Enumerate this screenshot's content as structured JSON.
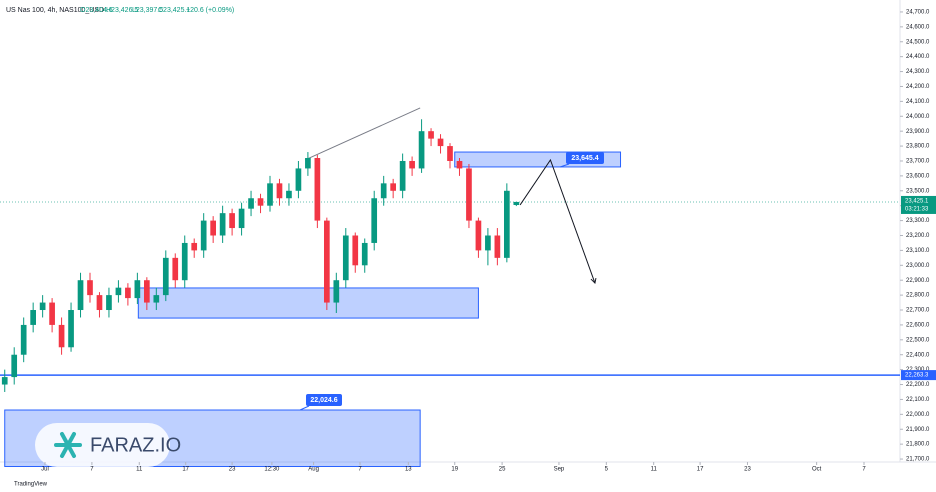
{
  "chart_data": {
    "type": "candlestick",
    "header": {
      "symbol": "US Nas 100, 4h, NAS100_USD",
      "open": "O23,404.6",
      "high": "H23,426.5",
      "low": "L23,397.5",
      "close": "C23,425.1",
      "change": "+20.6 (+0.09%)"
    },
    "up_color": "#089981",
    "down_color": "#f23645",
    "open": [
      22200,
      22250,
      22400,
      22600,
      22700,
      22750,
      22600,
      22450,
      22700,
      22900,
      22800,
      22700,
      22800,
      22850,
      22780,
      22900,
      22750,
      22800,
      23050,
      22900,
      23150,
      23100,
      23300,
      23200,
      23350,
      23250,
      23380,
      23450,
      23400,
      23550,
      23450,
      23500,
      23650,
      23720,
      23300,
      22750,
      22900,
      23200,
      23000,
      23150,
      23450,
      23550,
      23500,
      23700,
      23650,
      23900,
      23850,
      23800,
      23700,
      23650,
      23300,
      23100,
      23200,
      23050,
      23404.6
    ],
    "high": [
      22300,
      22450,
      22650,
      22750,
      22800,
      22780,
      22650,
      22750,
      22950,
      22950,
      22820,
      22850,
      22900,
      22880,
      22950,
      22920,
      22850,
      23100,
      23080,
      23200,
      23180,
      23350,
      23330,
      23400,
      23380,
      23420,
      23500,
      23480,
      23600,
      23580,
      23550,
      23700,
      23760,
      23740,
      23320,
      22950,
      23250,
      23220,
      23180,
      23500,
      23600,
      23580,
      23750,
      23730,
      23980,
      23920,
      23880,
      23820,
      23720,
      23680,
      23320,
      23250,
      23250,
      23550,
      23426.5
    ],
    "low": [
      22150,
      22200,
      22350,
      22550,
      22650,
      22550,
      22400,
      22420,
      22650,
      22750,
      22650,
      22650,
      22750,
      22730,
      22740,
      22700,
      22700,
      22760,
      22850,
      22850,
      23050,
      23050,
      23150,
      23150,
      23200,
      23200,
      23330,
      23350,
      23360,
      23400,
      23400,
      23450,
      23600,
      23250,
      22700,
      22680,
      22850,
      22950,
      22950,
      23100,
      23400,
      23450,
      23450,
      23600,
      23620,
      23800,
      23750,
      23650,
      23600,
      23250,
      23050,
      23000,
      23000,
      23020,
      23397.5
    ],
    "close": [
      22250,
      22400,
      22600,
      22700,
      22750,
      22600,
      22450,
      22700,
      22900,
      22800,
      22700,
      22800,
      22850,
      22780,
      22900,
      22750,
      22800,
      23050,
      22900,
      23150,
      23100,
      23300,
      23200,
      23350,
      23250,
      23380,
      23450,
      23400,
      23550,
      23450,
      23500,
      23650,
      23720,
      23300,
      22750,
      22900,
      23200,
      23000,
      23150,
      23450,
      23550,
      23500,
      23700,
      23650,
      23900,
      23850,
      23800,
      23700,
      23650,
      23300,
      23100,
      23200,
      23050,
      23500,
      23425.1
    ],
    "xlim": [
      0,
      95
    ],
    "xticks": [
      {
        "value": 4.75,
        "label": "Jul"
      },
      {
        "value": 9.7,
        "label": "7"
      },
      {
        "value": 14.7,
        "label": "11"
      },
      {
        "value": 19.6,
        "label": "17"
      },
      {
        "value": 24.5,
        "label": "23"
      },
      {
        "value": 28.7,
        "label": "12:30"
      },
      {
        "value": 33.1,
        "label": "Aug"
      },
      {
        "value": 38.0,
        "label": "7"
      },
      {
        "value": 43.1,
        "label": "13"
      },
      {
        "value": 48.0,
        "label": "19"
      },
      {
        "value": 53.0,
        "label": "25"
      },
      {
        "value": 59.0,
        "label": "Sep"
      },
      {
        "value": 64.0,
        "label": "5"
      },
      {
        "value": 69.0,
        "label": "11"
      },
      {
        "value": 73.9,
        "label": "17"
      },
      {
        "value": 78.9,
        "label": "23"
      },
      {
        "value": 86.2,
        "label": "Oct"
      },
      {
        "value": 91.2,
        "label": "7"
      }
    ],
    "ylim": [
      21650,
      24750
    ],
    "yticks": [
      {
        "value": 24700,
        "label": "24,700.0"
      },
      {
        "value": 24600,
        "label": "24,600.0"
      },
      {
        "value": 24500,
        "label": "24,500.0"
      },
      {
        "value": 24400,
        "label": "24,400.0"
      },
      {
        "value": 24300,
        "label": "24,300.0"
      },
      {
        "value": 24200,
        "label": "24,200.0"
      },
      {
        "value": 24100,
        "label": "24,100.0"
      },
      {
        "value": 24000,
        "label": "24,000.0"
      },
      {
        "value": 23900,
        "label": "23,900.0"
      },
      {
        "value": 23800,
        "label": "23,800.0"
      },
      {
        "value": 23700,
        "label": "23,700.0"
      },
      {
        "value": 23600,
        "label": "23,600.0"
      },
      {
        "value": 23500,
        "label": "23,500.0"
      },
      {
        "value": 23400,
        "label": "23,400.0"
      },
      {
        "value": 23300,
        "label": "23,300.0"
      },
      {
        "value": 23200,
        "label": "23,200.0"
      },
      {
        "value": 23100,
        "label": "23,100.0"
      },
      {
        "value": 23000,
        "label": "23,000.0"
      },
      {
        "value": 22900,
        "label": "22,900.0"
      },
      {
        "value": 22800,
        "label": "22,800.0"
      },
      {
        "value": 22700,
        "label": "22,700.0"
      },
      {
        "value": 22600,
        "label": "22,600.0"
      },
      {
        "value": 22500,
        "label": "22,500.0"
      },
      {
        "value": 22400,
        "label": "22,400.0"
      },
      {
        "value": 22300,
        "label": "22,300.0"
      },
      {
        "value": 22200,
        "label": "22,200.0"
      },
      {
        "value": 22100,
        "label": "22,100.0"
      },
      {
        "value": 22000,
        "label": "22,000.0"
      },
      {
        "value": 21900,
        "label": "21,900.0"
      },
      {
        "value": 21800,
        "label": "21,800.0"
      },
      {
        "value": 21700,
        "label": "21,700.0"
      }
    ],
    "current_price": {
      "value": 23425.1,
      "label": "23,425.1",
      "countdown": "03:21:33"
    },
    "level_line": {
      "value": 22263.3,
      "label": "22,263.3"
    },
    "zones": [
      {
        "x": [
          48.0,
          65.5
        ],
        "y": [
          23660,
          23760
        ],
        "label": "23,645.4"
      },
      {
        "x": [
          14.6,
          50.5
        ],
        "y": [
          22646,
          22848
        ]
      },
      {
        "x": [
          0.5,
          44.35
        ],
        "y": [
          21650,
          22029
        ],
        "label": "22,024.6"
      }
    ],
    "trend_line": {
      "x": [
        32.2,
        44.35
      ],
      "y": [
        23707,
        24056
      ]
    },
    "projection": {
      "x": [
        54.9,
        58.1,
        62.8
      ],
      "y": [
        23405,
        23707,
        22881
      ]
    },
    "watermark": "FARAZ.IO",
    "footer": "TradingView"
  }
}
